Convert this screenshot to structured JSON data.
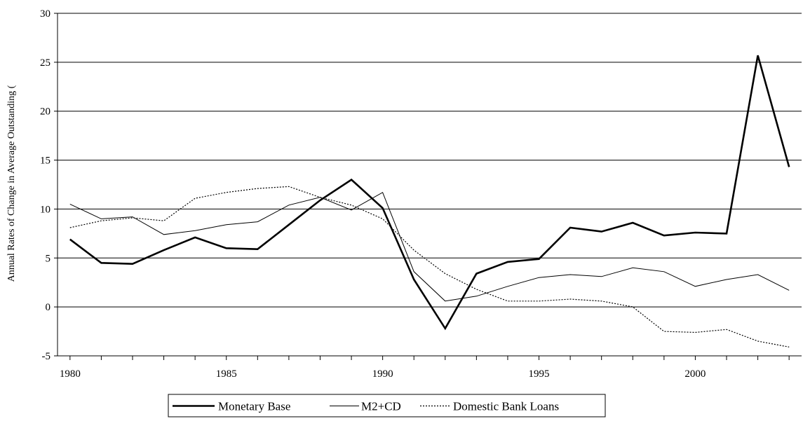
{
  "chart_data": {
    "type": "line",
    "title": "",
    "xlabel": "",
    "ylabel": "Annual Rates of Change in Average Outstanding (",
    "x": [
      1980,
      1981,
      1982,
      1983,
      1984,
      1985,
      1986,
      1987,
      1988,
      1989,
      1990,
      1991,
      1992,
      1993,
      1994,
      1995,
      1996,
      1997,
      1998,
      1999,
      2000,
      2001,
      2002,
      2003
    ],
    "xlim": [
      1979.6,
      2003.4
    ],
    "x_tick_labels": [
      "1980",
      "1985",
      "1990",
      "1995",
      "2000"
    ],
    "x_tick_values": [
      1980,
      1985,
      1990,
      1995,
      2000
    ],
    "ylim": [
      -5,
      30
    ],
    "y_tick_labels": [
      "-5",
      "0",
      "5",
      "10",
      "15",
      "20",
      "25",
      "30"
    ],
    "y_tick_values": [
      -5,
      0,
      5,
      10,
      15,
      20,
      25,
      30
    ],
    "grid": true,
    "legend_position": "bottom-center",
    "series": [
      {
        "name": "Monetary Base",
        "style": "thick-solid",
        "color": "#000000",
        "values": [
          6.9,
          4.5,
          4.4,
          5.8,
          7.1,
          6.0,
          5.9,
          8.4,
          10.9,
          13.0,
          10.1,
          2.8,
          -2.2,
          3.4,
          4.6,
          4.9,
          8.1,
          7.7,
          8.6,
          7.3,
          7.6,
          7.5,
          25.7,
          14.3
        ]
      },
      {
        "name": "M2+CD",
        "style": "thin-solid",
        "color": "#000000",
        "values": [
          10.5,
          9.0,
          9.2,
          7.4,
          7.8,
          8.4,
          8.7,
          10.4,
          11.2,
          9.9,
          11.7,
          3.6,
          0.6,
          1.1,
          2.1,
          3.0,
          3.3,
          3.1,
          4.0,
          3.6,
          2.1,
          2.8,
          3.3,
          1.7
        ]
      },
      {
        "name": "Domestic Bank Loans",
        "style": "dotted",
        "color": "#000000",
        "values": [
          8.1,
          8.8,
          9.1,
          8.8,
          11.1,
          11.7,
          12.1,
          12.3,
          11.2,
          10.4,
          9.0,
          5.8,
          3.4,
          1.8,
          0.6,
          0.6,
          0.8,
          0.6,
          0.0,
          -2.5,
          -2.6,
          -2.3,
          -3.5,
          -4.1
        ]
      }
    ]
  }
}
